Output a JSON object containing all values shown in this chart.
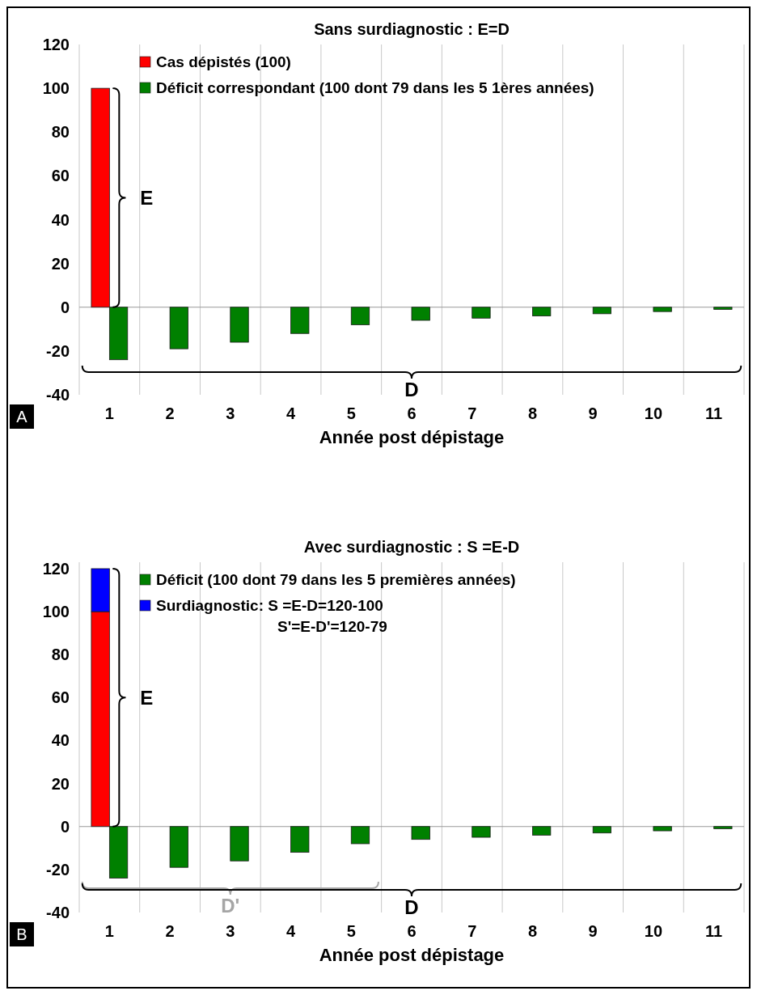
{
  "chart_data": [
    {
      "type": "bar",
      "title": "Sans surdiagnostic : E=D",
      "xlabel": "Année post dépistage",
      "categories": [
        "1",
        "2",
        "3",
        "4",
        "5",
        "6",
        "7",
        "8",
        "9",
        "10",
        "11"
      ],
      "series": [
        {
          "name": "Cas dépistés (100)",
          "color": "#ff0000",
          "values": [
            100,
            null,
            null,
            null,
            null,
            null,
            null,
            null,
            null,
            null,
            null
          ]
        },
        {
          "name": "Déficit correspondant (100 dont 79 dans les 5 1ères années)",
          "color": "#008000",
          "values": [
            -24,
            -19,
            -16,
            -12,
            -8,
            -6,
            -5,
            -4,
            -3,
            -2,
            -1
          ]
        }
      ],
      "ylim": [
        -40,
        120
      ],
      "yticks": [
        -40,
        -20,
        0,
        20,
        40,
        60,
        80,
        100,
        120
      ],
      "grid": "x",
      "legend": "top",
      "annotations": [
        "E",
        "D",
        "A"
      ]
    },
    {
      "type": "bar",
      "title": "Avec surdiagnostic : S =E-D",
      "xlabel": "Année post dépistage",
      "categories": [
        "1",
        "2",
        "3",
        "4",
        "5",
        "6",
        "7",
        "8",
        "9",
        "10",
        "11"
      ],
      "stacked": true,
      "series": [
        {
          "color": "#ff0000",
          "values": [
            100,
            null,
            null,
            null,
            null,
            null,
            null,
            null,
            null,
            null,
            null
          ]
        },
        {
          "name": "Déficit (100 dont 79 dans les 5 premières années)",
          "color": "#008000",
          "values": [
            -24,
            -19,
            -16,
            -12,
            -8,
            -6,
            -5,
            -4,
            -3,
            -2,
            -1
          ]
        },
        {
          "name": "Surdiagnostic: S =E-D=120-100\nS'=E-D'=120-79",
          "color": "#0000ff",
          "values": [
            20,
            null,
            null,
            null,
            null,
            null,
            null,
            null,
            null,
            null,
            null
          ]
        }
      ],
      "ylim": [
        -40,
        123
      ],
      "yticks": [
        -40,
        -20,
        0,
        20,
        40,
        60,
        80,
        100,
        120
      ],
      "grid": "x",
      "legend": "top",
      "annotations": [
        "E",
        "D'",
        "D",
        "B"
      ]
    }
  ]
}
